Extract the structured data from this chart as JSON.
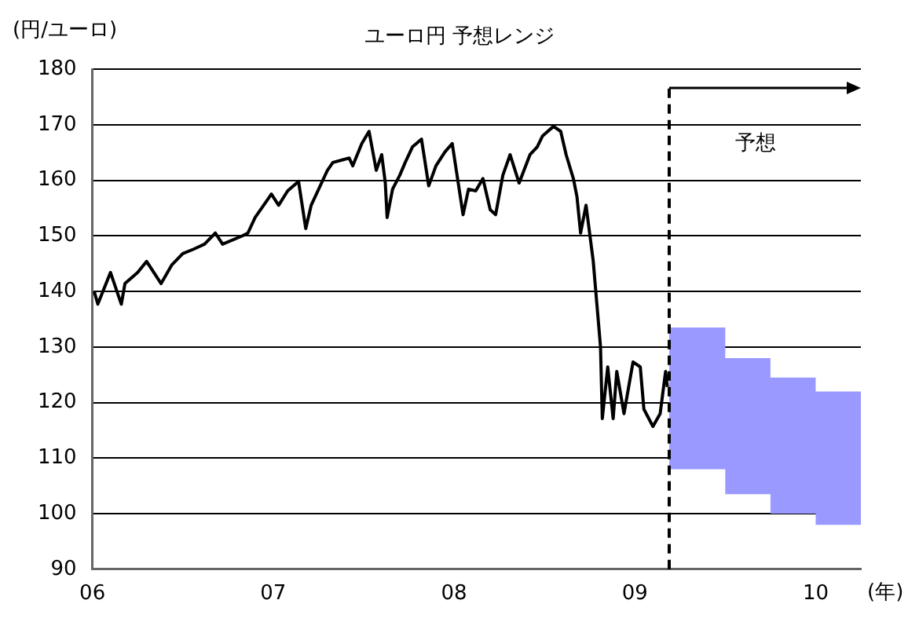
{
  "chart_data": {
    "type": "line",
    "title": "ユーロ円  予想レンジ",
    "xlabel": "(年)",
    "ylabel": "(円/ユーロ)",
    "xlim": [
      2006,
      2010.25
    ],
    "xticks": [
      {
        "value": 2006,
        "label": "06"
      },
      {
        "value": 2007,
        "label": "07"
      },
      {
        "value": 2008,
        "label": "08"
      },
      {
        "value": 2009,
        "label": "09"
      },
      {
        "value": 2010,
        "label": "10"
      }
    ],
    "ylim": [
      90,
      180
    ],
    "yticks": [
      90,
      100,
      110,
      120,
      130,
      140,
      150,
      160,
      170,
      180
    ],
    "grid": "y",
    "marker": "none",
    "series": [
      {
        "type": "line",
        "color": "#000000",
        "x": [
          2006.01,
          2006.03,
          2006.1,
          2006.16,
          2006.18,
          2006.25,
          2006.3,
          2006.38,
          2006.44,
          2006.5,
          2006.56,
          2006.62,
          2006.68,
          2006.72,
          2006.83,
          2006.86,
          2006.9,
          2006.99,
          2007.03,
          2007.08,
          2007.14,
          2007.18,
          2007.21,
          2007.3,
          2007.33,
          2007.42,
          2007.44,
          2007.49,
          2007.53,
          2007.57,
          2007.6,
          2007.62,
          2007.63,
          2007.66,
          2007.7,
          2007.73,
          2007.77,
          2007.82,
          2007.86,
          2007.9,
          2007.95,
          2007.99,
          2008.05,
          2008.08,
          2008.12,
          2008.16,
          2008.2,
          2008.23,
          2008.27,
          2008.31,
          2008.36,
          2008.42,
          2008.46,
          2008.49,
          2008.55,
          2008.59,
          2008.62,
          2008.66,
          2008.68,
          2008.7,
          2008.73,
          2008.77,
          2008.79,
          2008.81,
          2008.82,
          2008.85,
          2008.88,
          2008.9,
          2008.94,
          2008.97,
          2008.99,
          2009.03,
          2009.05,
          2009.1,
          2009.14,
          2009.17,
          2009.18
        ],
        "values": [
          140,
          137.7,
          143.4,
          137.7,
          141.4,
          143.4,
          145.4,
          141.4,
          144.8,
          146.8,
          147.6,
          148.5,
          150.5,
          148.5,
          150,
          150.5,
          153.3,
          157.5,
          155.5,
          158.1,
          159.8,
          151.3,
          155.5,
          161.8,
          163.2,
          164,
          162.6,
          166.6,
          168.8,
          161.8,
          164.6,
          159.5,
          153.3,
          158.4,
          160.9,
          163.2,
          166,
          167.4,
          159,
          162.6,
          165.1,
          166.6,
          153.8,
          158.4,
          158.1,
          160.3,
          154.7,
          153.8,
          160.9,
          164.6,
          159.5,
          164.6,
          166,
          168,
          169.7,
          168.8,
          164.6,
          160.3,
          157,
          150.5,
          155.5,
          145.4,
          137.7,
          130.1,
          117.1,
          126.4,
          117.1,
          125.6,
          118,
          123.6,
          127.3,
          126.4,
          118.8,
          115.7,
          118,
          125.6,
          122.8
        ]
      },
      {
        "type": "step",
        "color": "#9999ff",
        "x": [
          2009.19,
          2009.5,
          2009.75,
          2010,
          2010.25
        ],
        "values": [
          null,
          null,
          null,
          null,
          null
        ],
        "lower": [
          108,
          103.5,
          100,
          98,
          98
        ],
        "upper": [
          133.5,
          128,
          124.5,
          122,
          122
        ]
      }
    ],
    "ref_lines": [
      {
        "axis": "x",
        "value": 2009.19,
        "color": "#000000",
        "line_style": "dashed"
      }
    ],
    "annotations": [
      "予想"
    ]
  }
}
